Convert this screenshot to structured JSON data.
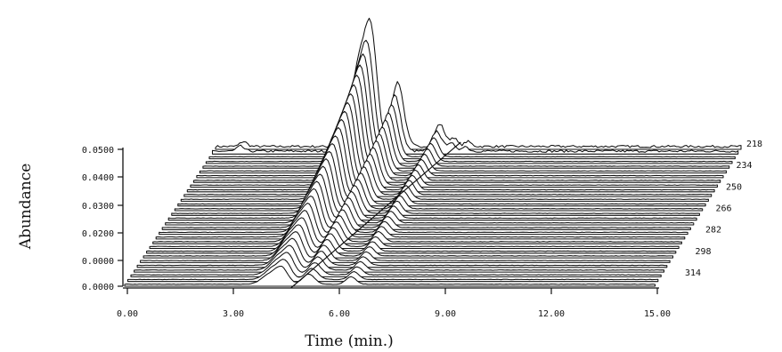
{
  "chart_data": {
    "type": "line",
    "style": "3d-stacked-chromatogram",
    "title": "",
    "xlabel": "Time (min.)",
    "ylabel": "Abundance",
    "x_ticks": [
      "0.00",
      "3.00",
      "6.00",
      "9.00",
      "12.00",
      "15.00"
    ],
    "y_ticks": [
      "0.0000",
      "0.0000",
      "0.0200",
      "0.0300",
      "0.0400",
      "0.0500"
    ],
    "xlim": [
      0,
      15
    ],
    "ylim": [
      0,
      0.05
    ],
    "wavelength_labels": [
      "218",
      "234",
      "250",
      "266",
      "282",
      "298",
      "314"
    ],
    "wavelength_range_nm": [
      218,
      314
    ],
    "num_traces": 30,
    "peaks": [
      {
        "time_min": 4.1,
        "back_abundance": 0.033,
        "front_abundance": 0.004
      },
      {
        "time_min": 4.45,
        "back_abundance": 0.04,
        "front_abundance": 0.006
      },
      {
        "time_min": 5.2,
        "back_abundance": 0.026,
        "front_abundance": 0.004
      },
      {
        "time_min": 6.4,
        "back_abundance": 0.009,
        "front_abundance": 0.003
      }
    ],
    "grid": false,
    "colors": {
      "line": "#111111",
      "background": "#ffffff"
    }
  }
}
